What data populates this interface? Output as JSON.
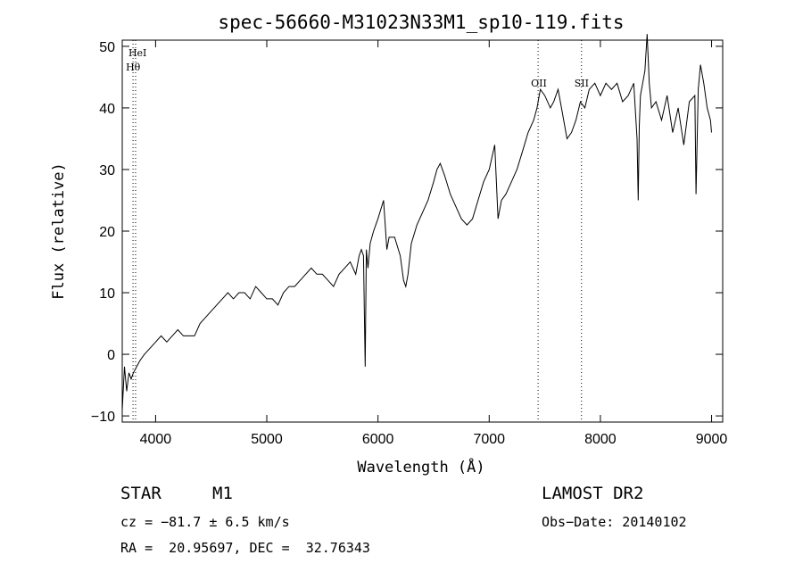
{
  "chart_data": {
    "type": "line",
    "title": "spec-56660-M31023N33M1_sp10-119.fits",
    "xlabel": "Wavelength (Å)",
    "ylabel": "Flux (relative)",
    "xlim": [
      3700,
      9100
    ],
    "ylim": [
      -11,
      51
    ],
    "xticks": [
      4000,
      5000,
      6000,
      7000,
      8000,
      9000
    ],
    "yticks": [
      -10,
      0,
      10,
      20,
      30,
      40,
      50
    ],
    "grid": false,
    "line_color": "#000000",
    "series": [
      {
        "x": [
          3700,
          3720,
          3740,
          3760,
          3780,
          3800,
          3830,
          3860,
          3900,
          3950,
          4000,
          4050,
          4100,
          4150,
          4200,
          4250,
          4300,
          4350,
          4400,
          4450,
          4500,
          4550,
          4600,
          4650,
          4700,
          4750,
          4800,
          4850,
          4900,
          4950,
          5000,
          5050,
          5100,
          5150,
          5200,
          5250,
          5300,
          5350,
          5400,
          5450,
          5500,
          5550,
          5600,
          5650,
          5700,
          5750,
          5800,
          5830,
          5850,
          5870,
          5885,
          5895,
          5910,
          5930,
          5960,
          6000,
          6050,
          6080,
          6100,
          6150,
          6200,
          6230,
          6250,
          6270,
          6300,
          6350,
          6400,
          6450,
          6500,
          6530,
          6560,
          6600,
          6650,
          6700,
          6750,
          6800,
          6850,
          6900,
          6950,
          7000,
          7050,
          7080,
          7110,
          7150,
          7200,
          7250,
          7300,
          7350,
          7400,
          7430,
          7460,
          7500,
          7550,
          7580,
          7620,
          7650,
          7700,
          7740,
          7780,
          7820,
          7860,
          7900,
          7950,
          8000,
          8050,
          8100,
          8150,
          8200,
          8250,
          8300,
          8330,
          8340,
          8350,
          8360,
          8380,
          8400,
          8420,
          8440,
          8460,
          8500,
          8550,
          8600,
          8650,
          8700,
          8750,
          8800,
          8850,
          8860,
          8880,
          8900,
          8930,
          8960,
          8990,
          9000
        ],
        "y": [
          -9,
          -2,
          -6,
          -3,
          -4,
          -3,
          -2,
          -1,
          0,
          1,
          2,
          3,
          2,
          3,
          4,
          3,
          3,
          3,
          5,
          6,
          7,
          8,
          9,
          10,
          9,
          10,
          10,
          9,
          11,
          10,
          9,
          9,
          8,
          10,
          11,
          11,
          12,
          13,
          14,
          13,
          13,
          12,
          11,
          13,
          14,
          15,
          13,
          16,
          17,
          16,
          -2,
          17,
          14,
          18,
          20,
          22,
          25,
          17,
          19,
          19,
          16,
          12,
          11,
          13,
          18,
          21,
          23,
          25,
          28,
          30,
          31,
          29,
          26,
          24,
          22,
          21,
          22,
          25,
          28,
          30,
          34,
          22,
          25,
          26,
          28,
          30,
          33,
          36,
          38,
          40,
          43,
          42,
          40,
          41,
          43,
          40,
          35,
          36,
          38,
          41,
          40,
          43,
          44,
          42,
          44,
          43,
          44,
          41,
          42,
          44,
          35,
          25,
          37,
          42,
          44,
          46,
          52,
          44,
          40,
          41,
          38,
          42,
          36,
          40,
          34,
          41,
          42,
          26,
          43,
          47,
          44,
          40,
          38,
          36
        ]
      }
    ],
    "annotations": [
      {
        "label": "HeI",
        "x": 3820
      },
      {
        "label": "Hθ",
        "x": 3797
      },
      {
        "label": "OII",
        "x": 7440
      },
      {
        "label": "SII",
        "x": 7830
      }
    ]
  },
  "info": {
    "object_class": "STAR",
    "subclass": "M1",
    "survey": "LAMOST DR2",
    "cz": "cz = −81.7 ± 6.5 km/s",
    "obs_date": "Obs−Date: 20140102",
    "radec": "RA =  20.95697, DEC =  32.76343"
  }
}
